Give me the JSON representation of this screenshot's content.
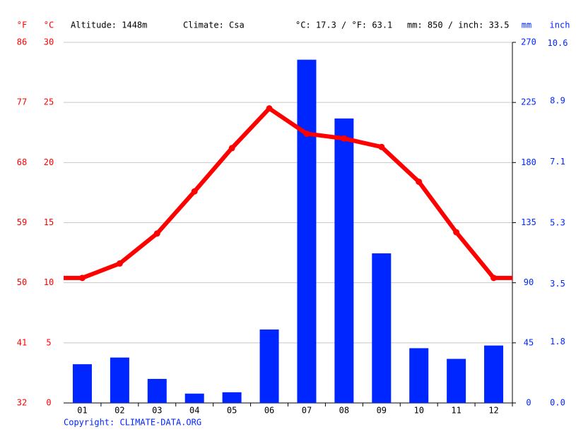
{
  "chart_data": {
    "type": "bar",
    "annotations": [
      "Altitude: 1448m",
      "Climate: Csa",
      "°C: 17.3 / °F: 63.1",
      "mm: 850 / inch: 33.5"
    ],
    "footer": "Copyright: CLIMATE-DATA.ORG",
    "categories": [
      "01",
      "02",
      "03",
      "04",
      "05",
      "06",
      "07",
      "08",
      "09",
      "10",
      "11",
      "12"
    ],
    "series": [
      {
        "type": "bar",
        "axis": "y2",
        "color": "#0026ff",
        "values": [
          29,
          34,
          18,
          7,
          8,
          55,
          257,
          213,
          112,
          41,
          33,
          43
        ]
      },
      {
        "type": "line",
        "color": "#ff0000",
        "values": [
          10.4,
          11.6,
          14.1,
          17.6,
          21.2,
          24.5,
          22.4,
          22.0,
          21.3,
          18.4,
          14.2,
          10.4
        ]
      }
    ],
    "ylabel": "°C",
    "ylim": [
      0,
      30
    ],
    "yticks": [
      0,
      5,
      10,
      15,
      20,
      25,
      30
    ],
    "y3label": "°F",
    "y3lim": [
      32,
      86
    ],
    "y3ticks": [
      32,
      41,
      50,
      59,
      68,
      77,
      86
    ],
    "y2label": "mm",
    "y2lim": [
      0,
      270
    ],
    "y2ticks": [
      0,
      45,
      90,
      135,
      180,
      225,
      270
    ],
    "y4label": "inch",
    "y4lim": [
      0,
      10.63
    ],
    "y4ticks": [
      {
        "value": 0,
        "label": "0.0"
      },
      1.8,
      3.5,
      5.3,
      7.1,
      8.9,
      10.6
    ],
    "grid": true
  }
}
